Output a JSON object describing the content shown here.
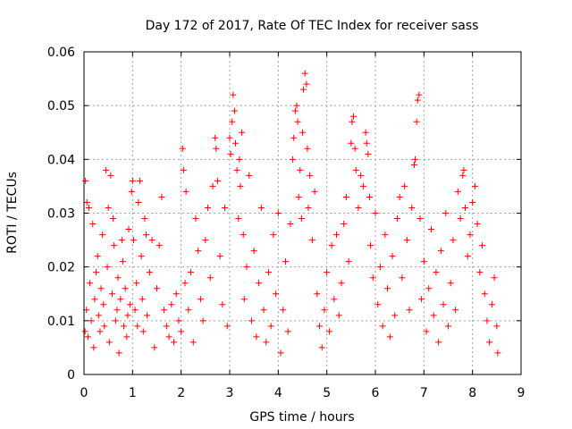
{
  "chart_data": {
    "type": "scatter",
    "title": "Day 172 of 2017, Rate Of TEC Index for receiver sass",
    "xlabel": "GPS time / hours",
    "ylabel": "ROTI / TECUs",
    "xlim": [
      0,
      9
    ],
    "ylim": [
      0,
      0.06
    ],
    "xticks": [
      "0",
      "1",
      "2",
      "3",
      "4",
      "5",
      "6",
      "7",
      "8",
      "9"
    ],
    "yticks": [
      "0",
      "0.01",
      "0.02",
      "0.03",
      "0.04",
      "0.05",
      "0.06"
    ],
    "grid": true,
    "marker": "+",
    "series": [
      {
        "color": "#ff0000",
        "points": [
          [
            0.02,
            0.008
          ],
          [
            0.03,
            0.036
          ],
          [
            0.05,
            0.012
          ],
          [
            0.06,
            0.032
          ],
          [
            0.08,
            0.007
          ],
          [
            0.1,
            0.031
          ],
          [
            0.12,
            0.017
          ],
          [
            0.15,
            0.01
          ],
          [
            0.18,
            0.028
          ],
          [
            0.2,
            0.005
          ],
          [
            0.22,
            0.014
          ],
          [
            0.25,
            0.019
          ],
          [
            0.28,
            0.022
          ],
          [
            0.3,
            0.011
          ],
          [
            0.33,
            0.008
          ],
          [
            0.35,
            0.016
          ],
          [
            0.38,
            0.026
          ],
          [
            0.4,
            0.013
          ],
          [
            0.42,
            0.009
          ],
          [
            0.45,
            0.038
          ],
          [
            0.48,
            0.02
          ],
          [
            0.5,
            0.031
          ],
          [
            0.52,
            0.006
          ],
          [
            0.55,
            0.037
          ],
          [
            0.58,
            0.015
          ],
          [
            0.6,
            0.029
          ],
          [
            0.62,
            0.024
          ],
          [
            0.65,
            0.01
          ],
          [
            0.68,
            0.012
          ],
          [
            0.7,
            0.018
          ],
          [
            0.72,
            0.004
          ],
          [
            0.75,
            0.014
          ],
          [
            0.78,
            0.025
          ],
          [
            0.8,
            0.021
          ],
          [
            0.82,
            0.009
          ],
          [
            0.85,
            0.016
          ],
          [
            0.88,
            0.007
          ],
          [
            0.9,
            0.011
          ],
          [
            0.92,
            0.027
          ],
          [
            0.95,
            0.013
          ],
          [
            0.98,
            0.034
          ],
          [
            1.0,
            0.036
          ],
          [
            1.02,
            0.025
          ],
          [
            1.05,
            0.012
          ],
          [
            1.08,
            0.017
          ],
          [
            1.1,
            0.009
          ],
          [
            1.12,
            0.032
          ],
          [
            1.15,
            0.036
          ],
          [
            1.18,
            0.022
          ],
          [
            1.2,
            0.014
          ],
          [
            1.22,
            0.008
          ],
          [
            1.25,
            0.029
          ],
          [
            1.28,
            0.026
          ],
          [
            1.3,
            0.011
          ],
          [
            1.35,
            0.019
          ],
          [
            1.4,
            0.025
          ],
          [
            1.45,
            0.005
          ],
          [
            1.5,
            0.016
          ],
          [
            1.55,
            0.024
          ],
          [
            1.6,
            0.033
          ],
          [
            1.65,
            0.012
          ],
          [
            1.7,
            0.009
          ],
          [
            1.75,
            0.007
          ],
          [
            1.8,
            0.013
          ],
          [
            1.85,
            0.006
          ],
          [
            1.9,
            0.015
          ],
          [
            1.95,
            0.01
          ],
          [
            2.0,
            0.008
          ],
          [
            2.03,
            0.042
          ],
          [
            2.05,
            0.038
          ],
          [
            2.08,
            0.017
          ],
          [
            2.1,
            0.034
          ],
          [
            2.15,
            0.012
          ],
          [
            2.2,
            0.019
          ],
          [
            2.25,
            0.006
          ],
          [
            2.3,
            0.029
          ],
          [
            2.35,
            0.023
          ],
          [
            2.4,
            0.014
          ],
          [
            2.45,
            0.01
          ],
          [
            2.5,
            0.025
          ],
          [
            2.55,
            0.031
          ],
          [
            2.6,
            0.018
          ],
          [
            2.65,
            0.035
          ],
          [
            2.7,
            0.044
          ],
          [
            2.72,
            0.042
          ],
          [
            2.75,
            0.036
          ],
          [
            2.8,
            0.022
          ],
          [
            2.85,
            0.013
          ],
          [
            2.9,
            0.031
          ],
          [
            2.95,
            0.009
          ],
          [
            3.0,
            0.044
          ],
          [
            3.02,
            0.041
          ],
          [
            3.05,
            0.047
          ],
          [
            3.07,
            0.052
          ],
          [
            3.1,
            0.049
          ],
          [
            3.12,
            0.043
          ],
          [
            3.15,
            0.038
          ],
          [
            3.18,
            0.029
          ],
          [
            3.2,
            0.04
          ],
          [
            3.22,
            0.035
          ],
          [
            3.25,
            0.045
          ],
          [
            3.28,
            0.026
          ],
          [
            3.3,
            0.014
          ],
          [
            3.35,
            0.02
          ],
          [
            3.4,
            0.037
          ],
          [
            3.45,
            0.01
          ],
          [
            3.5,
            0.023
          ],
          [
            3.55,
            0.007
          ],
          [
            3.6,
            0.017
          ],
          [
            3.65,
            0.031
          ],
          [
            3.7,
            0.012
          ],
          [
            3.75,
            0.006
          ],
          [
            3.8,
            0.019
          ],
          [
            3.85,
            0.009
          ],
          [
            3.9,
            0.026
          ],
          [
            3.95,
            0.015
          ],
          [
            4.0,
            0.03
          ],
          [
            4.05,
            0.004
          ],
          [
            4.1,
            0.012
          ],
          [
            4.15,
            0.021
          ],
          [
            4.2,
            0.008
          ],
          [
            4.25,
            0.028
          ],
          [
            4.3,
            0.04
          ],
          [
            4.32,
            0.044
          ],
          [
            4.35,
            0.049
          ],
          [
            4.38,
            0.05
          ],
          [
            4.4,
            0.047
          ],
          [
            4.42,
            0.033
          ],
          [
            4.45,
            0.038
          ],
          [
            4.48,
            0.029
          ],
          [
            4.5,
            0.045
          ],
          [
            4.52,
            0.053
          ],
          [
            4.55,
            0.056
          ],
          [
            4.58,
            0.054
          ],
          [
            4.6,
            0.042
          ],
          [
            4.62,
            0.031
          ],
          [
            4.65,
            0.037
          ],
          [
            4.7,
            0.025
          ],
          [
            4.75,
            0.034
          ],
          [
            4.8,
            0.015
          ],
          [
            4.85,
            0.009
          ],
          [
            4.9,
            0.005
          ],
          [
            4.95,
            0.012
          ],
          [
            5.0,
            0.019
          ],
          [
            5.05,
            0.008
          ],
          [
            5.1,
            0.024
          ],
          [
            5.15,
            0.014
          ],
          [
            5.2,
            0.026
          ],
          [
            5.25,
            0.011
          ],
          [
            5.3,
            0.017
          ],
          [
            5.35,
            0.028
          ],
          [
            5.4,
            0.033
          ],
          [
            5.45,
            0.021
          ],
          [
            5.5,
            0.043
          ],
          [
            5.52,
            0.047
          ],
          [
            5.55,
            0.048
          ],
          [
            5.58,
            0.042
          ],
          [
            5.6,
            0.038
          ],
          [
            5.65,
            0.031
          ],
          [
            5.7,
            0.037
          ],
          [
            5.75,
            0.035
          ],
          [
            5.8,
            0.045
          ],
          [
            5.82,
            0.043
          ],
          [
            5.85,
            0.041
          ],
          [
            5.88,
            0.033
          ],
          [
            5.9,
            0.024
          ],
          [
            5.95,
            0.018
          ],
          [
            6.0,
            0.03
          ],
          [
            6.05,
            0.013
          ],
          [
            6.1,
            0.02
          ],
          [
            6.15,
            0.009
          ],
          [
            6.2,
            0.026
          ],
          [
            6.25,
            0.016
          ],
          [
            6.3,
            0.007
          ],
          [
            6.35,
            0.022
          ],
          [
            6.4,
            0.011
          ],
          [
            6.45,
            0.029
          ],
          [
            6.5,
            0.033
          ],
          [
            6.55,
            0.018
          ],
          [
            6.6,
            0.035
          ],
          [
            6.65,
            0.025
          ],
          [
            6.7,
            0.012
          ],
          [
            6.75,
            0.031
          ],
          [
            6.8,
            0.039
          ],
          [
            6.82,
            0.04
          ],
          [
            6.85,
            0.047
          ],
          [
            6.87,
            0.051
          ],
          [
            6.9,
            0.052
          ],
          [
            6.92,
            0.029
          ],
          [
            6.95,
            0.014
          ],
          [
            7.0,
            0.021
          ],
          [
            7.05,
            0.008
          ],
          [
            7.1,
            0.016
          ],
          [
            7.15,
            0.027
          ],
          [
            7.2,
            0.011
          ],
          [
            7.25,
            0.019
          ],
          [
            7.3,
            0.006
          ],
          [
            7.35,
            0.023
          ],
          [
            7.4,
            0.013
          ],
          [
            7.45,
            0.03
          ],
          [
            7.5,
            0.009
          ],
          [
            7.55,
            0.017
          ],
          [
            7.6,
            0.025
          ],
          [
            7.65,
            0.012
          ],
          [
            7.7,
            0.034
          ],
          [
            7.75,
            0.029
          ],
          [
            7.8,
            0.037
          ],
          [
            7.82,
            0.038
          ],
          [
            7.85,
            0.031
          ],
          [
            7.9,
            0.022
          ],
          [
            7.95,
            0.026
          ],
          [
            8.0,
            0.032
          ],
          [
            8.05,
            0.035
          ],
          [
            8.1,
            0.028
          ],
          [
            8.15,
            0.019
          ],
          [
            8.2,
            0.024
          ],
          [
            8.25,
            0.015
          ],
          [
            8.3,
            0.01
          ],
          [
            8.35,
            0.006
          ],
          [
            8.4,
            0.013
          ],
          [
            8.45,
            0.018
          ],
          [
            8.5,
            0.009
          ],
          [
            8.52,
            0.004
          ]
        ]
      }
    ]
  }
}
